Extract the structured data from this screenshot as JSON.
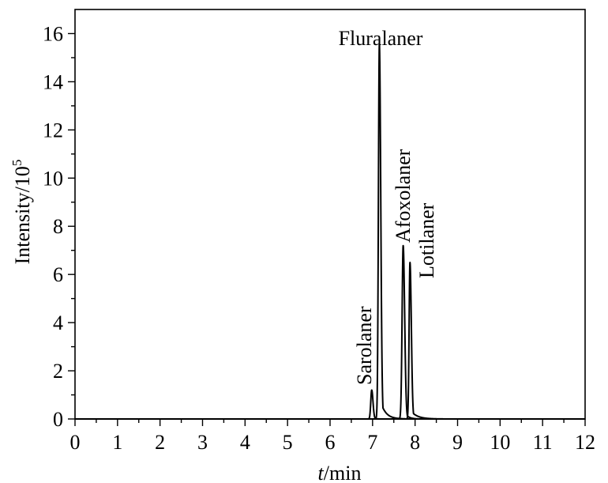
{
  "chart_data": {
    "type": "line",
    "title": "",
    "xlabel_italic": "t",
    "xlabel_rest": "/min",
    "ylabel_base": "Intensity/10",
    "ylabel_exp": "5",
    "xlim": [
      0,
      12
    ],
    "ylim": [
      0,
      17
    ],
    "x_ticks": [
      0,
      1,
      2,
      3,
      4,
      5,
      6,
      7,
      8,
      9,
      10,
      11,
      12
    ],
    "y_ticks": [
      0,
      2,
      4,
      6,
      8,
      10,
      12,
      14,
      16
    ],
    "grid": false,
    "legend": "none",
    "peaks": [
      {
        "name": "Sarolaner",
        "rt": 6.98,
        "height": 1.2,
        "sigma_l": 0.022,
        "sigma_r": 0.03,
        "tail": 0.05
      },
      {
        "name": "Fluralaner",
        "rt": 7.16,
        "height": 15.6,
        "sigma_l": 0.022,
        "sigma_r": 0.032,
        "tail": 0.12
      },
      {
        "name": "Afoxolaner",
        "rt": 7.72,
        "height": 7.2,
        "sigma_l": 0.025,
        "sigma_r": 0.035,
        "tail": 0.08
      },
      {
        "name": "Lotilaner",
        "rt": 7.88,
        "height": 6.5,
        "sigma_l": 0.02,
        "sigma_r": 0.032,
        "tail": 0.15
      }
    ]
  }
}
